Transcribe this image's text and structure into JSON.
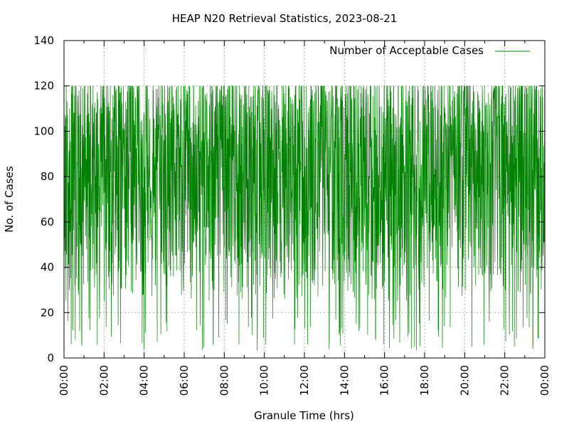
{
  "chart_data": {
    "type": "line",
    "title": "HEAP N20 Retrieval Statistics, 2023-08-21",
    "xlabel": "Granule Time (hrs)",
    "ylabel": "No. of Cases",
    "xlim": [
      "00:00",
      "24:00"
    ],
    "ylim": [
      0,
      140
    ],
    "x_ticks": [
      "00:00",
      "02:00",
      "04:00",
      "06:00",
      "08:00",
      "10:00",
      "12:00",
      "14:00",
      "16:00",
      "18:00",
      "20:00",
      "22:00",
      "00:00"
    ],
    "y_ticks": [
      "0",
      "20",
      "40",
      "60",
      "80",
      "100",
      "120",
      "140"
    ],
    "grid": true,
    "legend_position": "top-right",
    "series": [
      {
        "name": "Number of Acceptable Cases",
        "color": "#008000",
        "granule_count": 2400,
        "value_range": [
          3,
          120
        ],
        "x_start": "00:00",
        "x_end": "24:00"
      }
    ]
  }
}
